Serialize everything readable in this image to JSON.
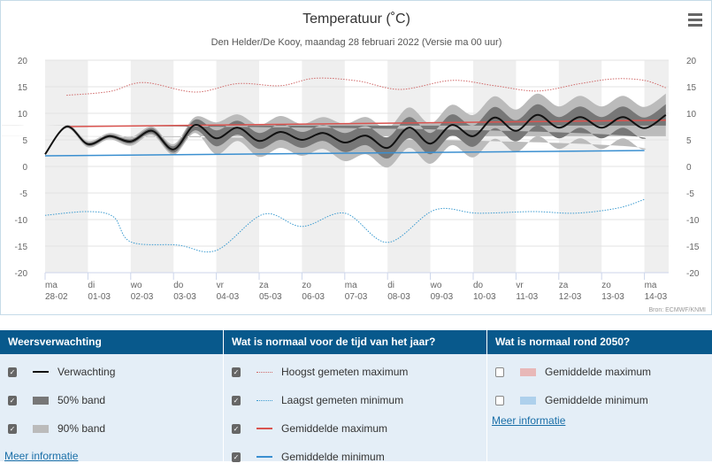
{
  "chart_data": {
    "type": "line",
    "title": "Temperatuur (˚C)",
    "subtitle": "Den Helder/De Kooy, maandag 28 februari 2022 (Versie ma 00 uur)",
    "source": "Bron: ECMWF/KNMI",
    "ylim": [
      -20,
      20
    ],
    "yticks": [
      20,
      15,
      10,
      5,
      0,
      -5,
      -10,
      -15,
      -20
    ],
    "grid": true,
    "xticks": [
      [
        "ma",
        "28-02"
      ],
      [
        "di",
        "01-03"
      ],
      [
        "wo",
        "02-03"
      ],
      [
        "do",
        "03-03"
      ],
      [
        "vr",
        "04-03"
      ],
      [
        "za",
        "05-03"
      ],
      [
        "zo",
        "06-03"
      ],
      [
        "ma",
        "07-03"
      ],
      [
        "di",
        "08-03"
      ],
      [
        "wo",
        "09-03"
      ],
      [
        "do",
        "10-03"
      ],
      [
        "vr",
        "11-03"
      ],
      [
        "za",
        "12-03"
      ],
      [
        "zo",
        "13-03"
      ],
      [
        "ma",
        "14-03"
      ]
    ],
    "forecast_days_step": 0.5,
    "verwachting": [
      2.3,
      7.5,
      4.2,
      5.7,
      4.7,
      6.7,
      3.2,
      7.8,
      5.3,
      7.3,
      4.8,
      6.5,
      5.0,
      6.3,
      4.5,
      5.8,
      3.5,
      7.3,
      4.3,
      7.8,
      5.7,
      9.2,
      6.7,
      9.7,
      7.3,
      9.3,
      7.3,
      9.3,
      7.2,
      9.7
    ],
    "p05": [
      2.3,
      7.2,
      3.6,
      5.1,
      3.9,
      5.9,
      2.2,
      6.3,
      2.3,
      4.8,
      1.8,
      3.5,
      2.0,
      3.3,
      1.0,
      2.3,
      -0.2,
      3.5,
      0.5,
      4.0,
      1.7,
      5.2,
      2.7,
      5.7,
      3.3,
      5.3,
      3.3,
      5.3,
      3.2,
      5.7
    ],
    "p25": [
      2.3,
      7.5,
      3.9,
      5.4,
      4.3,
      6.2,
      2.6,
      6.8,
      3.8,
      6.0,
      3.3,
      5.0,
      3.5,
      4.8,
      2.7,
      4.0,
      1.5,
      5.3,
      2.3,
      5.8,
      3.7,
      7.2,
      4.7,
      7.7,
      5.3,
      7.3,
      5.3,
      7.3,
      5.2,
      7.7
    ],
    "p75": [
      2.3,
      7.5,
      4.5,
      6.0,
      5.1,
      7.2,
      3.8,
      8.8,
      6.8,
      8.6,
      6.3,
      8.0,
      6.5,
      7.8,
      6.3,
      7.6,
      5.5,
      9.3,
      6.3,
      9.8,
      7.7,
      11.2,
      8.7,
      11.7,
      9.3,
      11.3,
      9.3,
      11.3,
      9.2,
      11.7
    ],
    "p95": [
      2.3,
      7.8,
      4.8,
      6.3,
      5.5,
      7.5,
      4.2,
      9.3,
      8.3,
      9.8,
      7.8,
      9.5,
      8.0,
      9.3,
      8.0,
      9.3,
      7.2,
      11.1,
      8.1,
      11.6,
      9.7,
      13.2,
      10.7,
      13.7,
      11.3,
      13.3,
      11.3,
      13.3,
      11.2,
      13.7
    ],
    "hoogst_gemeten_maximum": [
      [
        0.5,
        13.4
      ],
      [
        1.5,
        14.1
      ],
      [
        2.3,
        15.8
      ],
      [
        3.5,
        14
      ],
      [
        4.5,
        15.6
      ],
      [
        5.5,
        15.2
      ],
      [
        6.3,
        16.6
      ],
      [
        7.3,
        16.1
      ],
      [
        8.3,
        14.5
      ],
      [
        9.5,
        16.2
      ],
      [
        10.5,
        15.2
      ],
      [
        11.5,
        14.2
      ],
      [
        12.5,
        15.6
      ],
      [
        13.3,
        16.5
      ],
      [
        14,
        16.2
      ],
      [
        14.5,
        14.8
      ]
    ],
    "laagst_gemeten_minimum": [
      [
        0,
        -9.2
      ],
      [
        1,
        -8.5
      ],
      [
        1.6,
        -9.5
      ],
      [
        2,
        -14.2
      ],
      [
        3.1,
        -14.8
      ],
      [
        4,
        -15.8
      ],
      [
        5.1,
        -9
      ],
      [
        6,
        -11.3
      ],
      [
        7,
        -8.8
      ],
      [
        8,
        -14.3
      ],
      [
        9.1,
        -8.2
      ],
      [
        10.1,
        -8.8
      ],
      [
        11.4,
        -8.5
      ],
      [
        12.4,
        -8.8
      ],
      [
        13.4,
        -7.8
      ],
      [
        14,
        -6.2
      ]
    ],
    "gemiddelde_maximum": [
      [
        0.5,
        7.5
      ],
      [
        14.5,
        8.7
      ]
    ],
    "gemiddelde_minimum": [
      [
        0,
        2.0
      ],
      [
        14,
        3.0
      ]
    ],
    "colors": {
      "verwachting": "#111111",
      "band50": "#777777",
      "band90": "#bbbbbb",
      "hoogst": "#d06a6a",
      "laagst": "#3b9bd0",
      "gem_max": "#d9534f",
      "gem_min": "#3a8fd0",
      "dayshade": "#efefef"
    }
  },
  "legend": {
    "col1": {
      "title": "Weersverwachting",
      "items": [
        {
          "label": "Verwachting",
          "checked": true
        },
        {
          "label": "50% band",
          "checked": true
        },
        {
          "label": "90% band",
          "checked": true
        }
      ],
      "link": "Meer informatie"
    },
    "col2": {
      "title": "Wat is normaal voor de tijd van het jaar?",
      "items": [
        {
          "label": "Hoogst gemeten maximum",
          "checked": true
        },
        {
          "label": "Laagst gemeten minimum",
          "checked": true
        },
        {
          "label": "Gemiddelde maximum",
          "checked": true
        },
        {
          "label": "Gemiddelde minimum",
          "checked": true
        }
      ]
    },
    "col3": {
      "title": "Wat is normaal rond 2050?",
      "items": [
        {
          "label": "Gemiddelde maximum",
          "checked": false
        },
        {
          "label": "Gemiddelde minimum",
          "checked": false
        }
      ],
      "link": "Meer informatie"
    }
  }
}
